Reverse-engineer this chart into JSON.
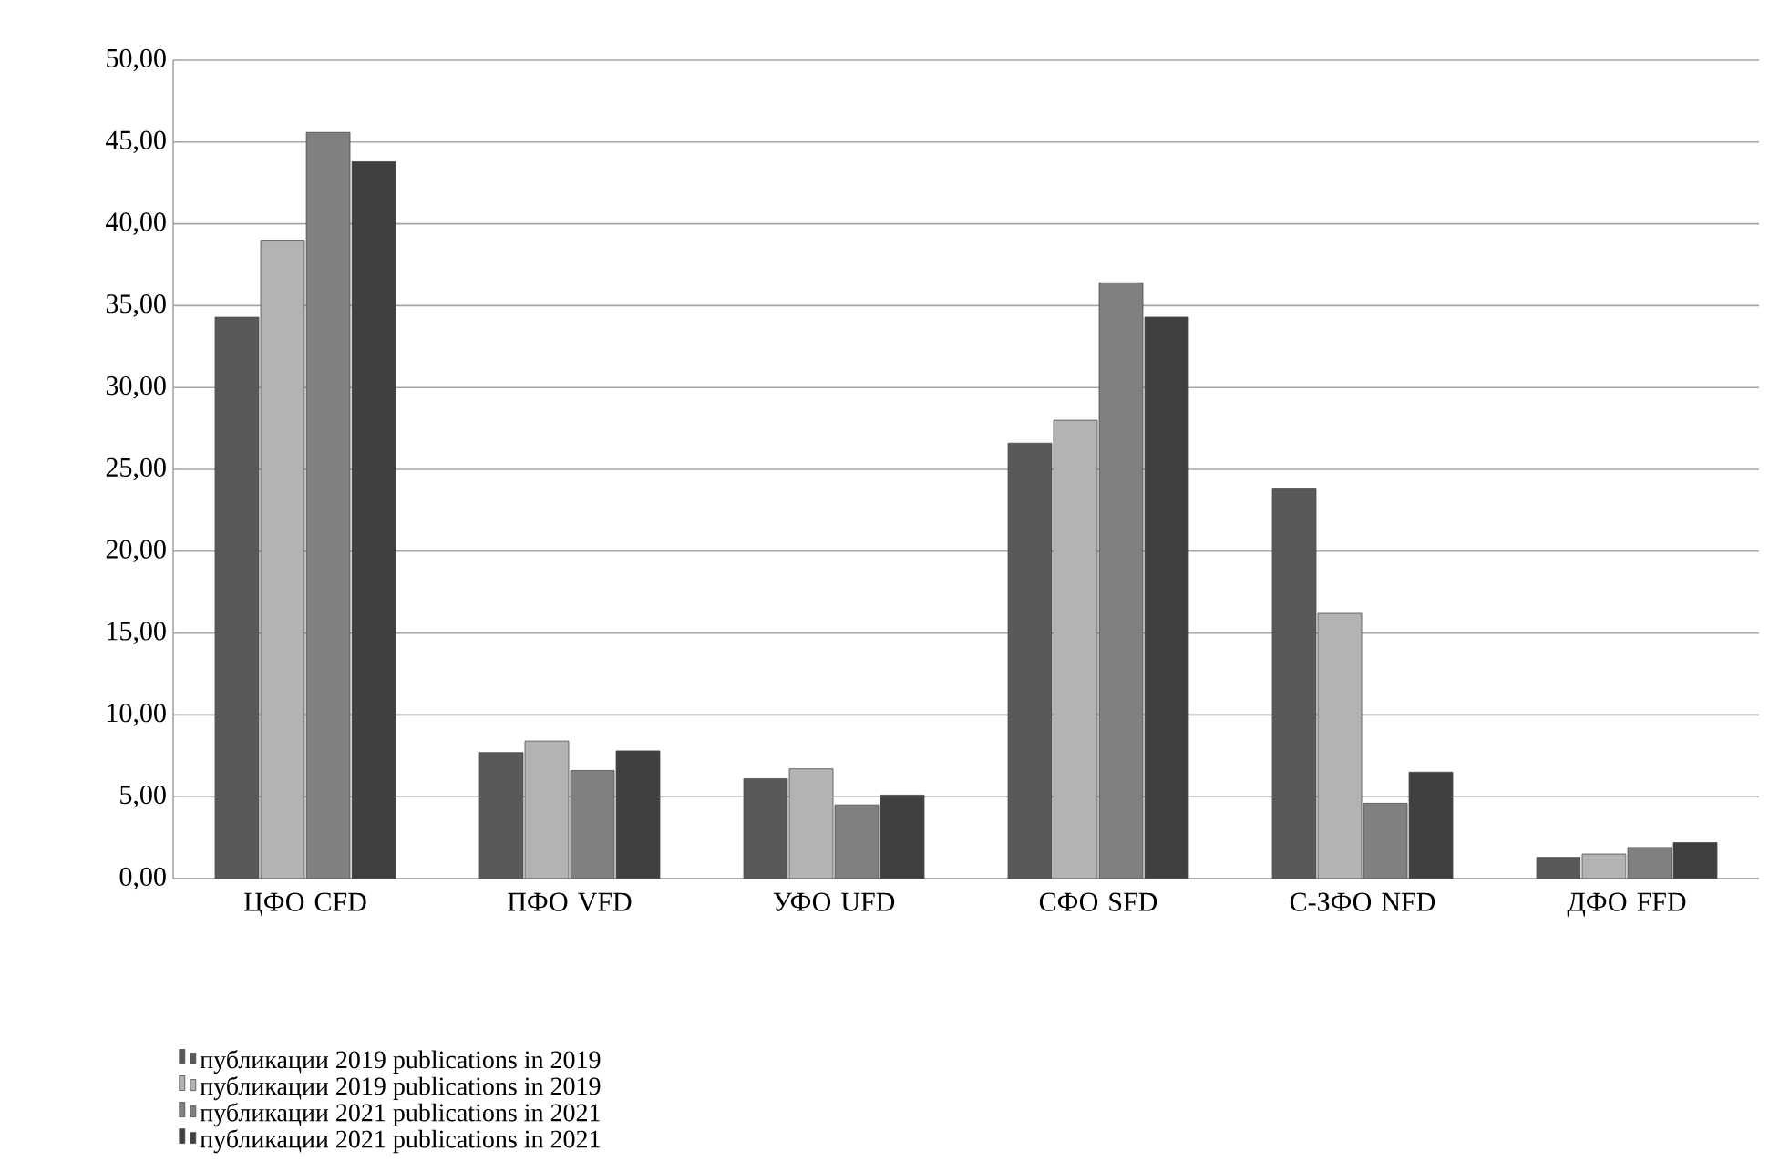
{
  "chart_data": {
    "type": "bar",
    "categories": [
      "ЦФО CFD",
      "ПФО VFD",
      "УФО UFD",
      "СФО SFD",
      "С-ЗФО NFD",
      "ДФО FFD"
    ],
    "series": [
      {
        "name": "публикации 2019 publications in 2019",
        "color": "#595959",
        "values": [
          34.3,
          7.7,
          6.1,
          26.6,
          23.8,
          1.3
        ]
      },
      {
        "name": "публикации 2019 publications in 2019",
        "color": "#b3b3b3",
        "values": [
          39.0,
          8.4,
          6.7,
          28.0,
          16.2,
          1.5
        ]
      },
      {
        "name": "публикации 2021 publications in 2021",
        "color": "#808080",
        "values": [
          45.6,
          6.6,
          4.5,
          36.4,
          4.6,
          1.9
        ]
      },
      {
        "name": "публикации 2021 publications in 2021",
        "color": "#404040",
        "values": [
          43.8,
          7.8,
          5.1,
          34.3,
          6.5,
          2.2
        ]
      }
    ],
    "ylim": [
      0,
      50
    ],
    "yticks": [
      {
        "value": 0,
        "label": "0,00"
      },
      {
        "value": 5,
        "label": "5,00"
      },
      {
        "value": 10,
        "label": "10,00"
      },
      {
        "value": 15,
        "label": "15,00"
      },
      {
        "value": 20,
        "label": "20,00"
      },
      {
        "value": 25,
        "label": "25,00"
      },
      {
        "value": 30,
        "label": "30,00"
      },
      {
        "value": 35,
        "label": "35,00"
      },
      {
        "value": 40,
        "label": "40,00"
      },
      {
        "value": 45,
        "label": "45,00"
      },
      {
        "value": 50,
        "label": "50,00"
      }
    ],
    "grid": "y",
    "legend": "bottom"
  }
}
